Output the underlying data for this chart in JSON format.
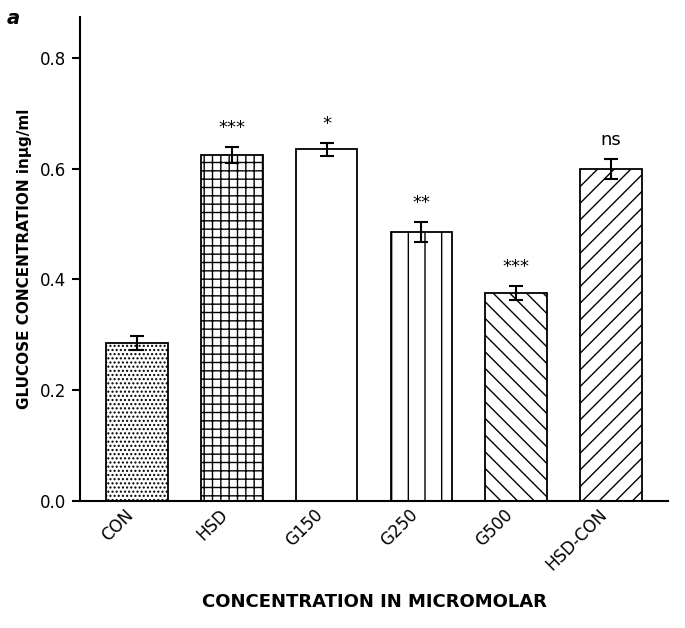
{
  "categories": [
    "CON",
    "HSD",
    "G150",
    "G250",
    "G500",
    "HSD-CON"
  ],
  "values": [
    0.285,
    0.625,
    0.635,
    0.485,
    0.375,
    0.6
  ],
  "errors": [
    0.013,
    0.015,
    0.012,
    0.018,
    0.013,
    0.018
  ],
  "significance": [
    "",
    "***",
    "*",
    "**",
    "***",
    "ns"
  ],
  "hatches": [
    "....",
    "+++",
    "---",
    "|||",
    "\\\\\\\\",
    "////"
  ],
  "ylabel": "GLUCOSE CONCENTRATION inμg/ml",
  "xlabel": "CONCENTRATION IN MICROMOLAR",
  "panel_label": "a",
  "ylim": [
    0.0,
    0.875
  ],
  "yticks": [
    0.0,
    0.2,
    0.4,
    0.6,
    0.8
  ],
  "bar_width": 0.65,
  "background_color": "#ffffff",
  "figsize": [
    6.85,
    6.28
  ],
  "dpi": 100
}
